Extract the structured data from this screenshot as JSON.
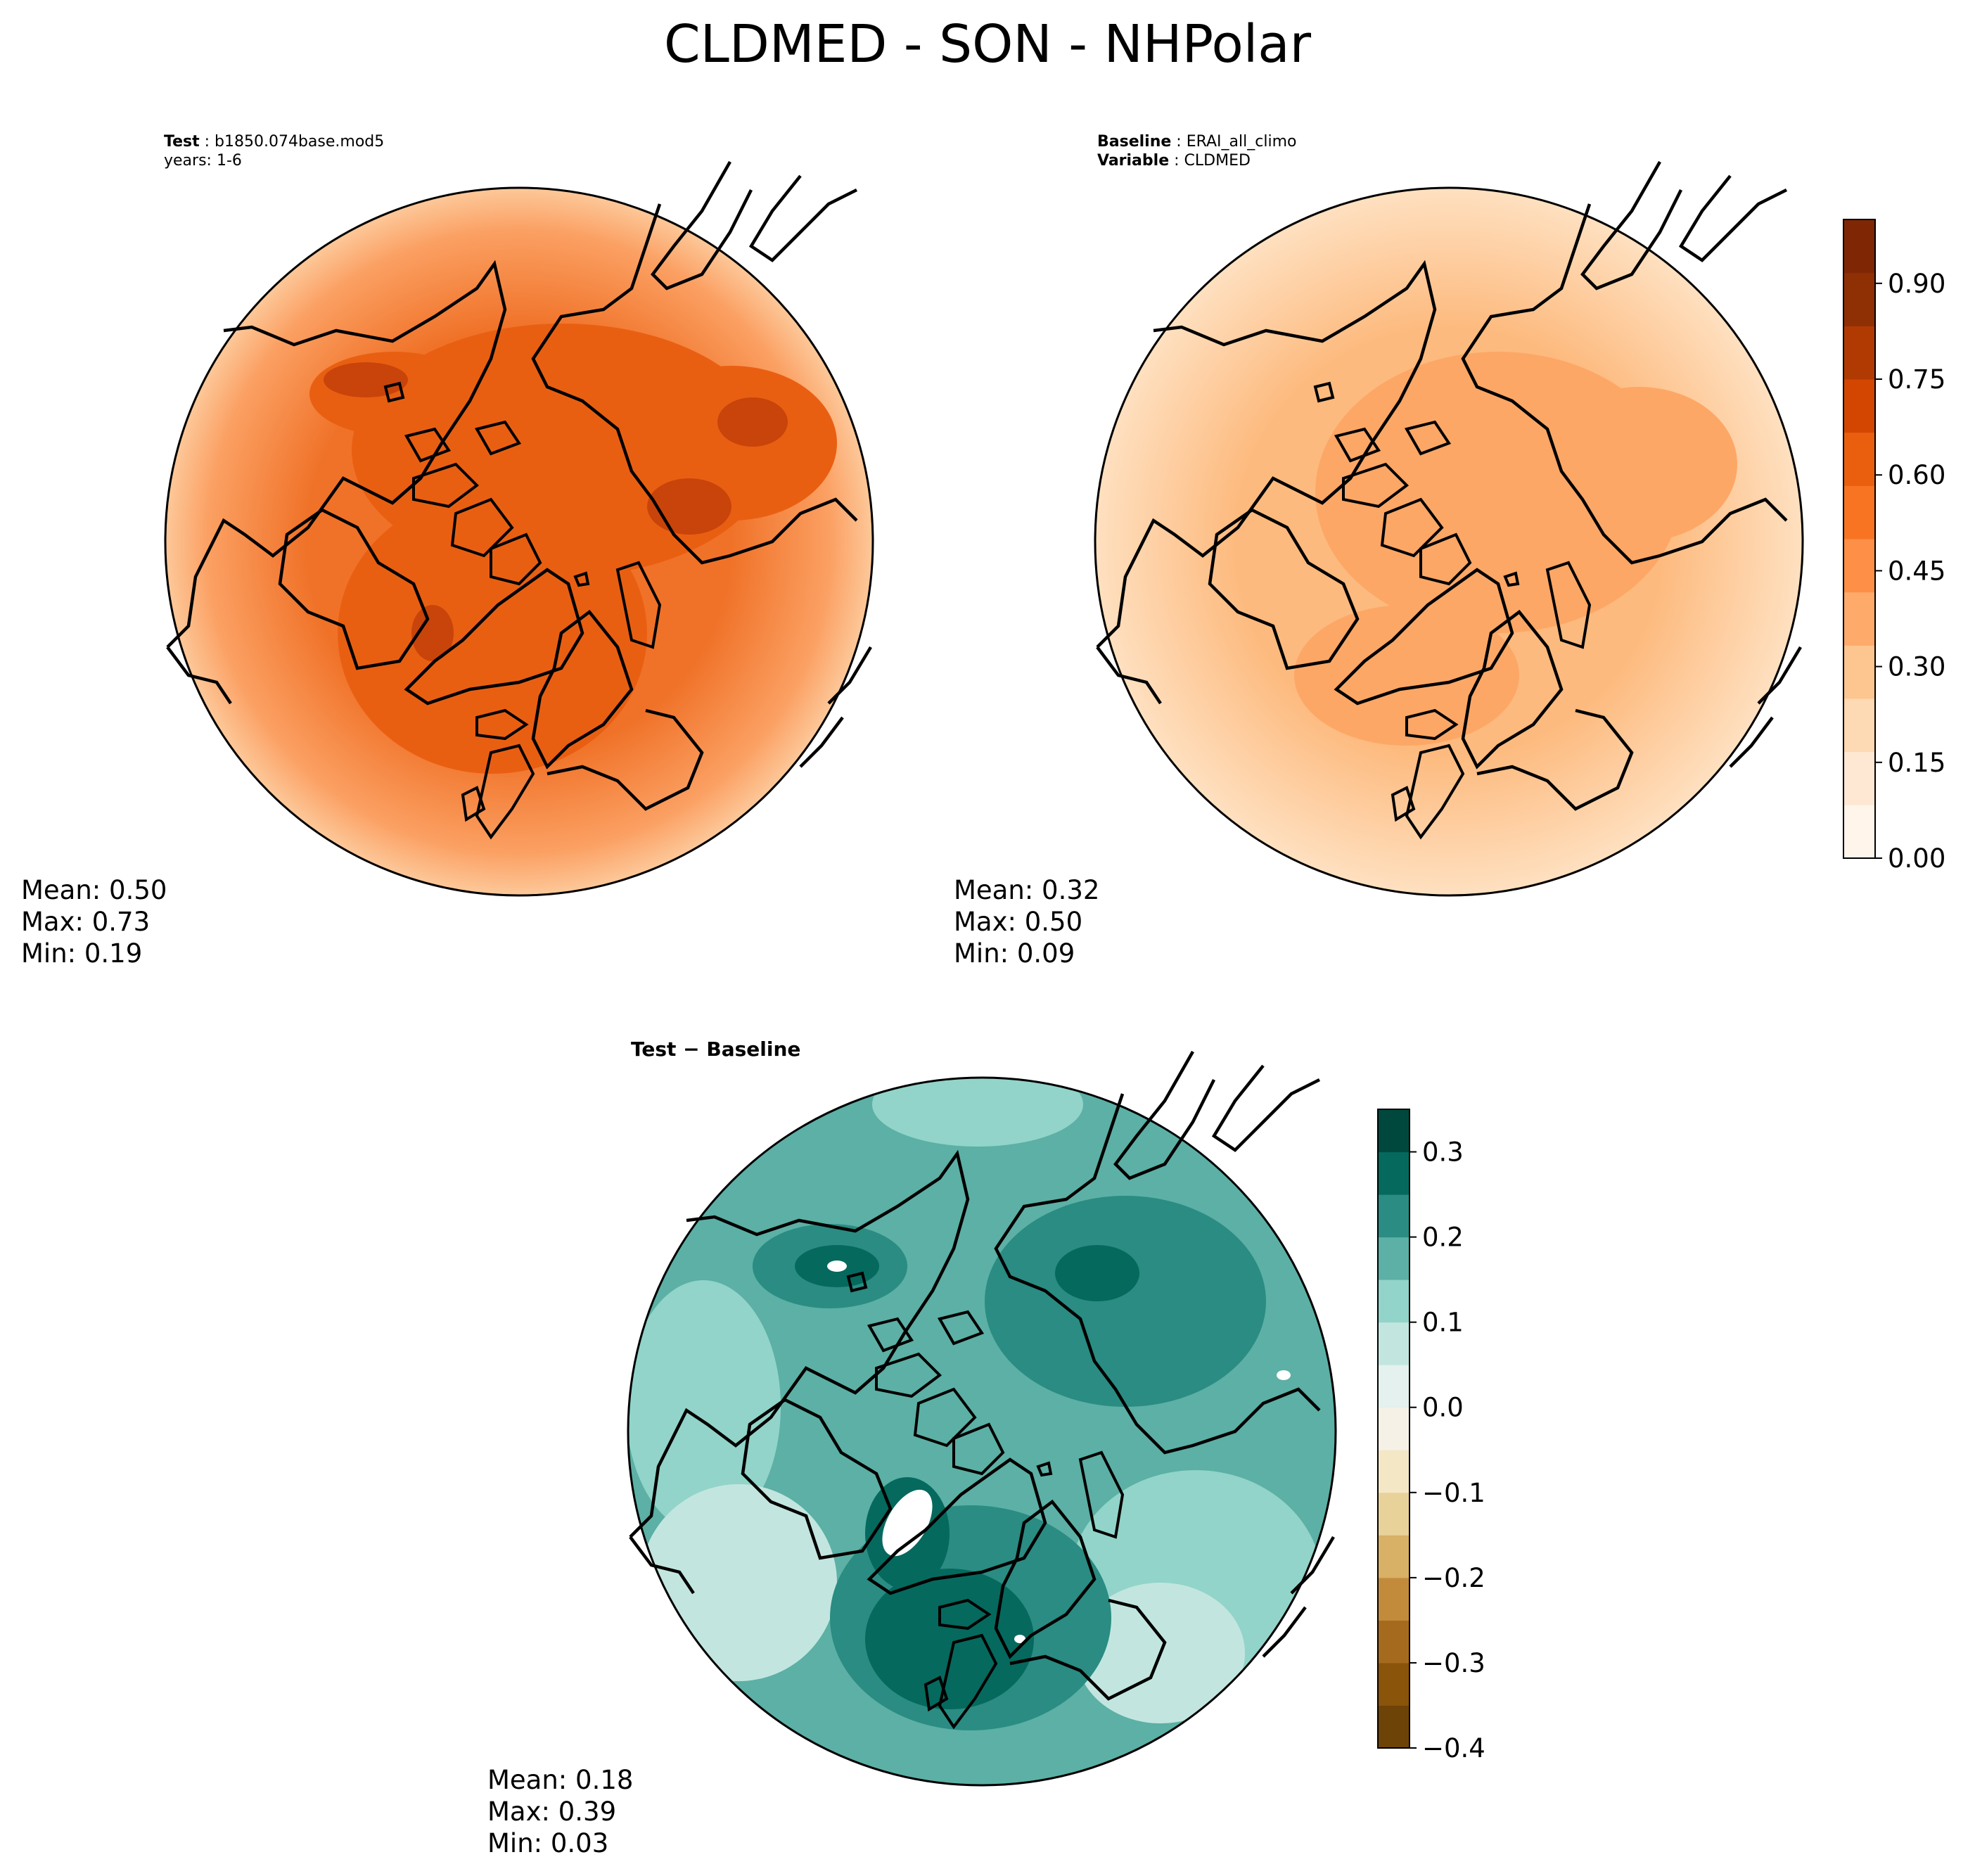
{
  "figure_title": "CLDMED - SON - NHPolar",
  "panels": {
    "test": {
      "label_bold": "Test",
      "label_value": "b1850.074base.mod5",
      "years": "years: 1-6",
      "stats": {
        "mean": "Mean:  0.50",
        "max": "Max:  0.73",
        "min": "Min:  0.19"
      }
    },
    "baseline": {
      "label_bold": "Baseline",
      "label_value": "ERAI_all_climo",
      "variable_bold": "Variable",
      "variable_value": "CLDMED",
      "stats": {
        "mean": "Mean:  0.32",
        "max": "Max:  0.50",
        "min": "Min:  0.09"
      }
    },
    "diff": {
      "title": "Test − Baseline",
      "stats": {
        "mean": "Mean:  0.18",
        "max": "Max:  0.39",
        "min": "Min:  0.03"
      }
    }
  },
  "colorbars": {
    "top": {
      "colormap": "Oranges",
      "range": [
        0,
        1
      ],
      "ticks": [
        "0.00",
        "0.15",
        "0.30",
        "0.45",
        "0.60",
        "0.75",
        "0.90"
      ],
      "tick_values": [
        0.0,
        0.15,
        0.3,
        0.45,
        0.6,
        0.75,
        0.9
      ],
      "colors": [
        "#fff5eb",
        "#fee8d3",
        "#fdd9b4",
        "#fdc590",
        "#fdaa6b",
        "#fd8f47",
        "#f87423",
        "#ea5f0e",
        "#d34601",
        "#b13a03",
        "#8f2f04",
        "#7f2704"
      ]
    },
    "diff": {
      "colormap": "BrBG",
      "range": [
        -0.4,
        0.35
      ],
      "ticks": [
        "0.3",
        "0.2",
        "0.1",
        "0.0",
        "−0.1",
        "−0.2",
        "−0.3",
        "−0.4"
      ],
      "tick_values": [
        0.3,
        0.2,
        0.1,
        0.0,
        -0.1,
        -0.2,
        -0.3,
        -0.4
      ],
      "colors": [
        "#6d4307",
        "#8a540b",
        "#a66a1f",
        "#c28b3c",
        "#d8b066",
        "#e8d29a",
        "#f3e7c6",
        "#f5f1e6",
        "#e4f1ee",
        "#c2e6df",
        "#92d4c9",
        "#5cb0a5",
        "#2a8c82",
        "#05695e",
        "#00483d"
      ]
    }
  },
  "map_colors": {
    "test_base": "#f07228",
    "test_mid": "#e95f12",
    "test_dark": "#c9440a",
    "test_edge": "#fba063",
    "test_rim": "#fdc899",
    "base_base": "#fdba7e",
    "base_mid": "#fda766",
    "base_rim": "#fee0c0",
    "diff_base": "#5cb0a5",
    "diff_dark": "#05695e",
    "diff_mid": "#2a8c82",
    "diff_light": "#92d4c9",
    "diff_pale": "#c2e6df",
    "coast": "#000000"
  }
}
